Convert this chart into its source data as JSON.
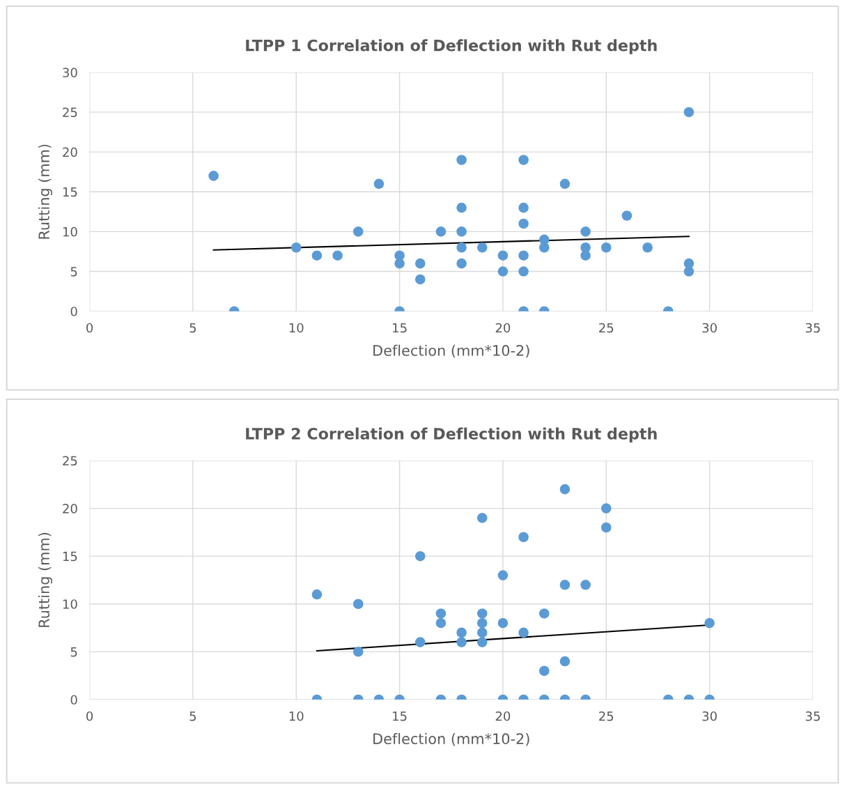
{
  "chart_data": [
    {
      "type": "scatter",
      "title": "LTPP 1 Correlation of Deflection with Rut depth",
      "xlabel": "Deflection (mm*10-2)",
      "ylabel": "Rutting (mm)",
      "xlim": [
        0,
        35
      ],
      "xticks": [
        0,
        5,
        10,
        15,
        20,
        25,
        30,
        35
      ],
      "ylim": [
        0,
        30
      ],
      "yticks": [
        0,
        5,
        10,
        15,
        20,
        25,
        30
      ],
      "grid": true,
      "series": [
        {
          "marker": "circle",
          "color": "#5b9bd5",
          "x": [
            6,
            7,
            10,
            11,
            12,
            13,
            14,
            15,
            15,
            15,
            16,
            16,
            17,
            18,
            18,
            18,
            18,
            18,
            19,
            20,
            20,
            21,
            21,
            21,
            21,
            21,
            21,
            22,
            22,
            22,
            23,
            24,
            24,
            24,
            25,
            26,
            27,
            28,
            29,
            29,
            29
          ],
          "values": [
            17,
            0,
            8,
            7,
            7,
            10,
            16,
            7,
            6,
            0,
            6,
            4,
            10,
            19,
            13,
            10,
            8,
            6,
            8,
            7,
            5,
            19,
            13,
            11,
            7,
            5,
            0,
            9,
            8,
            0,
            16,
            10,
            8,
            7,
            8,
            12,
            8,
            0,
            25,
            6,
            5
          ]
        },
        {
          "type": "line",
          "marker": "none",
          "color": "#000000",
          "x": [
            6,
            29
          ],
          "values": [
            7.7,
            9.4
          ]
        }
      ]
    },
    {
      "type": "scatter",
      "title": "LTPP 2 Correlation of Deflection with Rut depth",
      "xlabel": "Deflection (mm*10-2)",
      "ylabel": "Rutting (mm)",
      "xlim": [
        0,
        35
      ],
      "xticks": [
        0,
        5,
        10,
        15,
        20,
        25,
        30,
        35
      ],
      "ylim": [
        0,
        25
      ],
      "yticks": [
        0,
        5,
        10,
        15,
        20,
        25
      ],
      "grid": true,
      "series": [
        {
          "marker": "circle",
          "color": "#5b9bd5",
          "x": [
            11,
            11,
            13,
            13,
            13,
            14,
            15,
            16,
            16,
            17,
            17,
            17,
            18,
            18,
            18,
            19,
            19,
            19,
            19,
            19,
            20,
            20,
            20,
            21,
            21,
            21,
            22,
            22,
            22,
            23,
            23,
            23,
            23,
            24,
            24,
            25,
            25,
            28,
            29,
            30,
            30
          ],
          "values": [
            11,
            0,
            10,
            5,
            0,
            0,
            0,
            15,
            6,
            9,
            8,
            0,
            7,
            6,
            0,
            19,
            9,
            8,
            7,
            6,
            13,
            8,
            0,
            17,
            7,
            0,
            9,
            3,
            0,
            22,
            12,
            4,
            0,
            12,
            0,
            20,
            18,
            0,
            0,
            8,
            0
          ]
        },
        {
          "type": "line",
          "marker": "none",
          "color": "#000000",
          "x": [
            11,
            30
          ],
          "values": [
            5.1,
            7.8
          ]
        }
      ]
    }
  ]
}
